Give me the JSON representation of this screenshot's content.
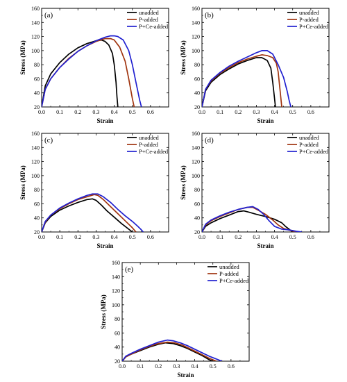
{
  "figure": {
    "legend_placement": "top-right",
    "series_names": [
      "unadded",
      "P-added",
      "P+Ce-added"
    ],
    "series_colors": [
      "#000000",
      "#a0340f",
      "#2020d0"
    ]
  },
  "chart_data": [
    {
      "type": "line",
      "panel_label": "(a)",
      "xlabel": "Strain",
      "ylabel": "Stress (MPa)",
      "xlim": [
        0.0,
        0.7
      ],
      "ylim": [
        20,
        160
      ],
      "xticks": [
        "0.0",
        "0.1",
        "0.2",
        "0.3",
        "0.4",
        "0.5",
        "0.6"
      ],
      "yticks": [
        "20",
        "40",
        "60",
        "80",
        "100",
        "120",
        "140",
        "160"
      ],
      "legend": [
        "unadded",
        "P-added",
        "P+Ce-added"
      ],
      "series": [
        {
          "name": "unadded",
          "color": "#000000",
          "x": [
            0.0,
            0.02,
            0.05,
            0.1,
            0.15,
            0.2,
            0.25,
            0.3,
            0.33,
            0.35,
            0.37,
            0.39,
            0.4,
            0.41,
            0.415,
            0.42
          ],
          "y": [
            20,
            50,
            67,
            83,
            95,
            104,
            110,
            114,
            115,
            113,
            108,
            96,
            80,
            55,
            35,
            20
          ]
        },
        {
          "name": "P-added",
          "color": "#a0340f",
          "x": [
            0.0,
            0.02,
            0.05,
            0.1,
            0.15,
            0.2,
            0.25,
            0.3,
            0.35,
            0.38,
            0.4,
            0.43,
            0.46,
            0.48,
            0.5,
            0.51
          ],
          "y": [
            20,
            45,
            60,
            76,
            89,
            99,
            107,
            113,
            117,
            117,
            115,
            105,
            85,
            60,
            32,
            20
          ]
        },
        {
          "name": "P+Ce-added",
          "color": "#2020d0",
          "x": [
            0.0,
            0.02,
            0.05,
            0.1,
            0.15,
            0.2,
            0.25,
            0.3,
            0.35,
            0.38,
            0.4,
            0.42,
            0.45,
            0.48,
            0.5,
            0.52,
            0.54,
            0.55
          ],
          "y": [
            20,
            45,
            60,
            76,
            88,
            99,
            107,
            114,
            119,
            121,
            121,
            120,
            115,
            100,
            80,
            55,
            30,
            20
          ]
        }
      ]
    },
    {
      "type": "line",
      "panel_label": "(b)",
      "xlabel": "Strain",
      "ylabel": "Stress (MPa)",
      "xlim": [
        0.0,
        0.7
      ],
      "ylim": [
        20,
        160
      ],
      "xticks": [
        "0.0",
        "0.1",
        "0.2",
        "0.3",
        "0.4",
        "0.5",
        "0.6"
      ],
      "yticks": [
        "20",
        "40",
        "60",
        "80",
        "100",
        "120",
        "140",
        "160"
      ],
      "legend": [
        "unadded",
        "P-added",
        "P+Ce-added"
      ],
      "series": [
        {
          "name": "unadded",
          "color": "#000000",
          "x": [
            0.0,
            0.02,
            0.05,
            0.1,
            0.15,
            0.2,
            0.25,
            0.3,
            0.33,
            0.36,
            0.38,
            0.39,
            0.4,
            0.405
          ],
          "y": [
            20,
            43,
            55,
            66,
            74,
            81,
            86,
            90,
            90,
            86,
            75,
            55,
            32,
            20
          ]
        },
        {
          "name": "P-added",
          "color": "#a0340f",
          "x": [
            0.0,
            0.02,
            0.05,
            0.1,
            0.15,
            0.2,
            0.25,
            0.3,
            0.33,
            0.36,
            0.39,
            0.41,
            0.42,
            0.43,
            0.44
          ],
          "y": [
            20,
            45,
            57,
            68,
            76,
            83,
            88,
            92,
            94,
            93,
            90,
            82,
            70,
            45,
            20
          ]
        },
        {
          "name": "P+Ce-added",
          "color": "#2020d0",
          "x": [
            0.0,
            0.02,
            0.05,
            0.1,
            0.15,
            0.2,
            0.25,
            0.3,
            0.33,
            0.36,
            0.39,
            0.42,
            0.45,
            0.47,
            0.48,
            0.49
          ],
          "y": [
            20,
            45,
            58,
            69,
            78,
            85,
            91,
            97,
            100,
            100,
            95,
            80,
            62,
            42,
            30,
            20
          ]
        }
      ]
    },
    {
      "type": "line",
      "panel_label": "(c)",
      "xlabel": "Strain",
      "ylabel": "Stress (MPa)",
      "xlim": [
        0.0,
        0.7
      ],
      "ylim": [
        20,
        160
      ],
      "xticks": [
        "0.0",
        "0.1",
        "0.2",
        "0.3",
        "0.4",
        "0.5",
        "0.6"
      ],
      "yticks": [
        "20",
        "40",
        "60",
        "80",
        "100",
        "120",
        "140",
        "160"
      ],
      "legend": [
        "unadded",
        "P-added",
        "P+Ce-added"
      ],
      "series": [
        {
          "name": "unadded",
          "color": "#000000",
          "x": [
            0.0,
            0.02,
            0.05,
            0.1,
            0.15,
            0.2,
            0.25,
            0.28,
            0.3,
            0.33,
            0.36,
            0.4,
            0.44,
            0.47,
            0.5
          ],
          "y": [
            20,
            33,
            42,
            51,
            57,
            62,
            66,
            67,
            65,
            58,
            50,
            41,
            32,
            26,
            20
          ]
        },
        {
          "name": "P-added",
          "color": "#a0340f",
          "x": [
            0.0,
            0.02,
            0.05,
            0.1,
            0.15,
            0.2,
            0.25,
            0.29,
            0.31,
            0.34,
            0.38,
            0.42,
            0.46,
            0.5,
            0.52
          ],
          "y": [
            20,
            34,
            44,
            53,
            60,
            66,
            70,
            73,
            72,
            66,
            56,
            46,
            36,
            26,
            20
          ]
        },
        {
          "name": "P+Ce-added",
          "color": "#2020d0",
          "x": [
            0.0,
            0.02,
            0.05,
            0.1,
            0.15,
            0.2,
            0.25,
            0.28,
            0.31,
            0.34,
            0.38,
            0.42,
            0.46,
            0.5,
            0.53,
            0.55,
            0.56
          ],
          "y": [
            20,
            35,
            44,
            54,
            61,
            67,
            72,
            74,
            74,
            70,
            62,
            52,
            43,
            35,
            28,
            23,
            20
          ]
        }
      ]
    },
    {
      "type": "line",
      "panel_label": "(d)",
      "xlabel": "Strain",
      "ylabel": "Stress (MPa)",
      "xlim": [
        0.0,
        0.7
      ],
      "ylim": [
        20,
        160
      ],
      "xticks": [
        "0.0",
        "0.1",
        "0.2",
        "0.3",
        "0.4",
        "0.5",
        "0.6"
      ],
      "yticks": [
        "20",
        "40",
        "60",
        "80",
        "100",
        "120",
        "140",
        "160"
      ],
      "legend": [
        "unadded",
        "P-added",
        "P+Ce-added"
      ],
      "series": [
        {
          "name": "unadded",
          "color": "#000000",
          "x": [
            0.0,
            0.02,
            0.05,
            0.1,
            0.15,
            0.2,
            0.23,
            0.26,
            0.3,
            0.35,
            0.4,
            0.44,
            0.46,
            0.48,
            0.5
          ],
          "y": [
            20,
            28,
            33,
            39,
            44,
            49,
            50,
            48,
            45,
            42,
            38,
            33,
            28,
            24,
            20
          ]
        },
        {
          "name": "P-added",
          "color": "#a0340f",
          "x": [
            0.0,
            0.02,
            0.05,
            0.1,
            0.15,
            0.2,
            0.25,
            0.28,
            0.31,
            0.35,
            0.39,
            0.42,
            0.45,
            0.49,
            0.52
          ],
          "y": [
            20,
            30,
            36,
            42,
            47,
            52,
            55,
            55,
            51,
            45,
            37,
            30,
            25,
            22,
            20
          ]
        },
        {
          "name": "P+Ce-added",
          "color": "#2020d0",
          "x": [
            0.0,
            0.02,
            0.05,
            0.1,
            0.15,
            0.2,
            0.25,
            0.28,
            0.31,
            0.34,
            0.37,
            0.4,
            0.44,
            0.48,
            0.52,
            0.55
          ],
          "y": [
            20,
            31,
            37,
            43,
            48,
            52,
            55,
            56,
            52,
            45,
            36,
            28,
            24,
            23,
            21,
            20
          ]
        }
      ]
    },
    {
      "type": "line",
      "panel_label": "(e)",
      "xlabel": "Strain",
      "ylabel": "Stress (MPa)",
      "xlim": [
        0.0,
        0.7
      ],
      "ylim": [
        20,
        160
      ],
      "xticks": [
        "0.0",
        "0.1",
        "0.2",
        "0.3",
        "0.4",
        "0.5",
        "0.6"
      ],
      "yticks": [
        "20",
        "40",
        "60",
        "80",
        "100",
        "120",
        "140",
        "160"
      ],
      "legend": [
        "unadded",
        "P-added",
        "P+Ce-added"
      ],
      "series": [
        {
          "name": "unadded",
          "color": "#000000",
          "x": [
            0.0,
            0.02,
            0.05,
            0.1,
            0.15,
            0.2,
            0.24,
            0.28,
            0.32,
            0.36,
            0.4,
            0.44,
            0.46,
            0.48,
            0.5
          ],
          "y": [
            20,
            26,
            30,
            35,
            40,
            44,
            46,
            45,
            42,
            38,
            33,
            28,
            25,
            22,
            20
          ]
        },
        {
          "name": "P-added",
          "color": "#a0340f",
          "x": [
            0.0,
            0.02,
            0.05,
            0.1,
            0.15,
            0.2,
            0.25,
            0.29,
            0.33,
            0.37,
            0.41,
            0.45,
            0.48,
            0.5,
            0.52
          ],
          "y": [
            20,
            26,
            30,
            36,
            41,
            45,
            47,
            46,
            43,
            38,
            33,
            28,
            24,
            22,
            20
          ]
        },
        {
          "name": "P+Ce-added",
          "color": "#2020d0",
          "x": [
            0.0,
            0.02,
            0.05,
            0.1,
            0.15,
            0.2,
            0.25,
            0.28,
            0.32,
            0.36,
            0.4,
            0.44,
            0.48,
            0.51,
            0.53,
            0.55
          ],
          "y": [
            20,
            27,
            31,
            37,
            42,
            47,
            50,
            49,
            46,
            42,
            37,
            32,
            27,
            24,
            22,
            20
          ]
        }
      ]
    }
  ]
}
